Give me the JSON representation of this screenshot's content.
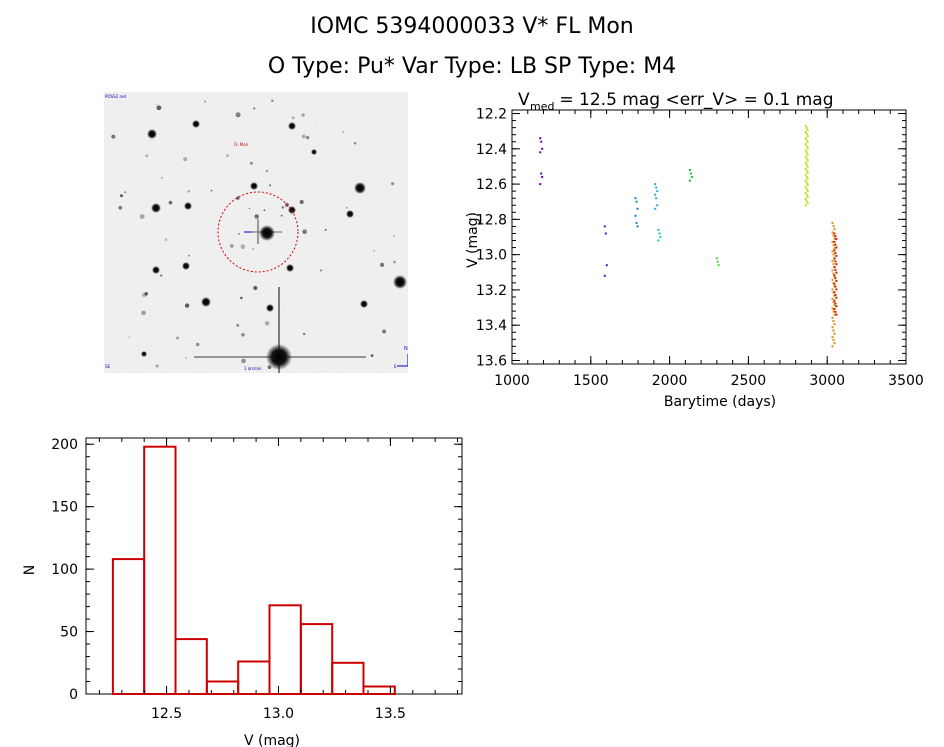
{
  "header": {
    "title_line1": "IOMC 5394000033    V* FL Mon",
    "title_line2": "O Type: Pu*   Var Type: LB   SP Type: M4"
  },
  "image_panel": {
    "label_top_left": "POSS2 red",
    "label_star": "FL Mon",
    "label_bottom_left": "SE",
    "label_bottom_center": "1 arcmin",
    "label_bottom_right": "E",
    "label_north": "N"
  },
  "lightcurve": {
    "title_main": "V",
    "title_sub": "med",
    "title_rest": " = 12.5 mag <err_V> = 0.1 mag"
  },
  "colors": {
    "histogram": "#cc0000",
    "circle": "#dd0000"
  },
  "chart_data": [
    {
      "type": "scatter",
      "title": "V_med = 12.5 mag <err_V> = 0.1 mag",
      "xlabel": "Barytime (days)",
      "ylabel": "V (mag)",
      "xlim": [
        1000,
        3500
      ],
      "ylim": [
        13.62,
        12.18
      ],
      "xticks": [
        1000,
        1500,
        2000,
        2500,
        3000,
        3500
      ],
      "yticks": [
        12.2,
        12.4,
        12.6,
        12.8,
        13.0,
        13.2,
        13.4,
        13.6
      ],
      "clusters": [
        {
          "x": 1185,
          "color": "#6a00a8",
          "values": [
            12.34,
            12.36,
            12.4,
            12.42,
            12.54,
            12.56,
            12.6
          ]
        },
        {
          "x": 1595,
          "color": "#2020d0",
          "values": [
            12.84,
            12.88,
            13.06,
            13.12
          ]
        },
        {
          "x": 1790,
          "color": "#1a7fd0",
          "values": [
            12.68,
            12.7,
            12.74,
            12.78,
            12.82,
            12.84
          ]
        },
        {
          "x": 1915,
          "color": "#2aa8e0",
          "values": [
            12.6,
            12.62,
            12.64,
            12.66,
            12.68,
            12.72,
            12.74
          ]
        },
        {
          "x": 1935,
          "color": "#20c8b0",
          "values": [
            12.86,
            12.88,
            12.9,
            12.92
          ]
        },
        {
          "x": 2135,
          "color": "#20c040",
          "values": [
            12.52,
            12.54,
            12.56,
            12.58
          ]
        },
        {
          "x": 2305,
          "color": "#50d040",
          "values": [
            13.02,
            13.04,
            13.06
          ]
        },
        {
          "x": 2870,
          "color": "#c0e020",
          "range": [
            12.27,
            12.72
          ],
          "count": 40
        },
        {
          "x": 3040,
          "color": "#e09010",
          "range": [
            12.82,
            13.52
          ],
          "count": 40
        },
        {
          "x": 3052,
          "color": "#cc2000",
          "range": [
            12.88,
            13.34
          ],
          "count": 30
        }
      ]
    },
    {
      "type": "bar",
      "title": "",
      "xlabel": "V (mag)",
      "ylabel": "N",
      "xlim": [
        12.14,
        13.82
      ],
      "ylim": [
        0,
        205
      ],
      "xticks": [
        12.5,
        13.0,
        13.5
      ],
      "yticks": [
        0,
        50,
        100,
        150,
        200
      ],
      "bin_edges": [
        12.26,
        12.4,
        12.54,
        12.68,
        12.82,
        12.96,
        13.1,
        13.24,
        13.38,
        13.52
      ],
      "values": [
        108,
        198,
        44,
        10,
        26,
        71,
        56,
        25,
        6
      ]
    }
  ]
}
